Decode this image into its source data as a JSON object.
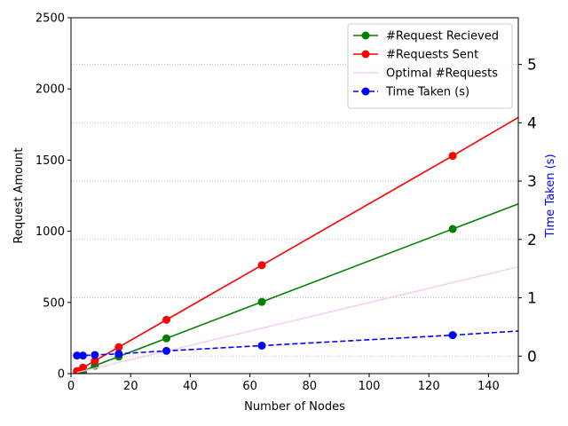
{
  "chart_data": {
    "type": "line",
    "title": "",
    "xlabel": "Number of Nodes",
    "ylabel": "Request Amount",
    "y2label": "Time Taken (s)",
    "xlim": [
      0,
      150
    ],
    "ylim": [
      0,
      2500
    ],
    "y2lim": [
      -0.3,
      5.8
    ],
    "xticks": [
      0,
      20,
      40,
      60,
      80,
      100,
      120,
      140
    ],
    "yticks": [
      0,
      500,
      1000,
      1500,
      2000,
      2500
    ],
    "y2ticks": [
      0,
      1,
      2,
      3,
      4,
      5
    ],
    "grid": "horizontal dotted (secondary axis)",
    "legend_position": "top-right",
    "series": [
      {
        "name": "#Request Recieved",
        "axis": "left",
        "color": "#008000",
        "style": "solid",
        "marker": "circle",
        "x": [
          2,
          4,
          8,
          16,
          32,
          64,
          128,
          150
        ],
        "y": [
          2,
          12,
          56,
          120,
          248,
          504,
          1016,
          1192
        ],
        "marker_points": [
          2,
          4,
          8,
          16,
          32,
          64,
          128
        ]
      },
      {
        "name": "#Requests Sent",
        "axis": "left",
        "color": "#ff0000",
        "style": "solid",
        "marker": "circle",
        "x": [
          2,
          4,
          8,
          16,
          32,
          64,
          128,
          150
        ],
        "y": [
          18,
          42,
          90,
          186,
          378,
          762,
          1530,
          1800
        ],
        "marker_points": [
          2,
          4,
          8,
          16,
          32,
          64,
          128
        ]
      },
      {
        "name": "Optimal #Requests",
        "axis": "left",
        "color": "#f5c6f5",
        "style": "solid",
        "marker": "none",
        "x": [
          2,
          150
        ],
        "y": [
          8,
          750
        ]
      },
      {
        "name": "Time Taken (s)",
        "axis": "right",
        "color": "#0000ff",
        "style": "dashed",
        "marker": "circle",
        "x": [
          2,
          4,
          8,
          16,
          32,
          64,
          128,
          150
        ],
        "y": [
          0.01,
          0.01,
          0.02,
          0.04,
          0.09,
          0.18,
          0.36,
          0.43
        ],
        "marker_points": [
          2,
          4,
          8,
          16,
          32,
          64,
          128
        ]
      }
    ]
  }
}
